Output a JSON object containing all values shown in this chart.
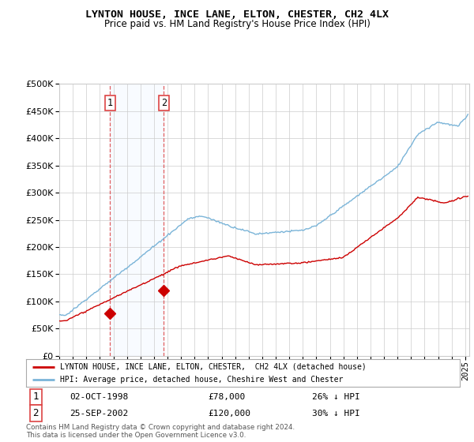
{
  "title": "LYNTON HOUSE, INCE LANE, ELTON, CHESTER, CH2 4LX",
  "subtitle": "Price paid vs. HM Land Registry's House Price Index (HPI)",
  "legend_label_red": "LYNTON HOUSE, INCE LANE, ELTON, CHESTER,  CH2 4LX (detached house)",
  "legend_label_blue": "HPI: Average price, detached house, Cheshire West and Chester",
  "sale1_date": "02-OCT-1998",
  "sale1_price": "£78,000",
  "sale1_hpi": "26% ↓ HPI",
  "sale2_date": "25-SEP-2002",
  "sale2_price": "£120,000",
  "sale2_hpi": "30% ↓ HPI",
  "footnote": "Contains HM Land Registry data © Crown copyright and database right 2024.\nThis data is licensed under the Open Government Licence v3.0.",
  "ylim": [
    0,
    500000
  ],
  "yticks": [
    0,
    50000,
    100000,
    150000,
    200000,
    250000,
    300000,
    350000,
    400000,
    450000,
    500000
  ],
  "sale1_x": 1998.75,
  "sale1_y": 78000,
  "sale2_x": 2002.73,
  "sale2_y": 120000,
  "hpi_color": "#7ab4d8",
  "price_color": "#cc0000",
  "shade_color": "#ddeeff",
  "vline_color": "#dd4444",
  "background_color": "#ffffff",
  "grid_color": "#cccccc",
  "xmin": 1995,
  "xmax": 2025.3
}
